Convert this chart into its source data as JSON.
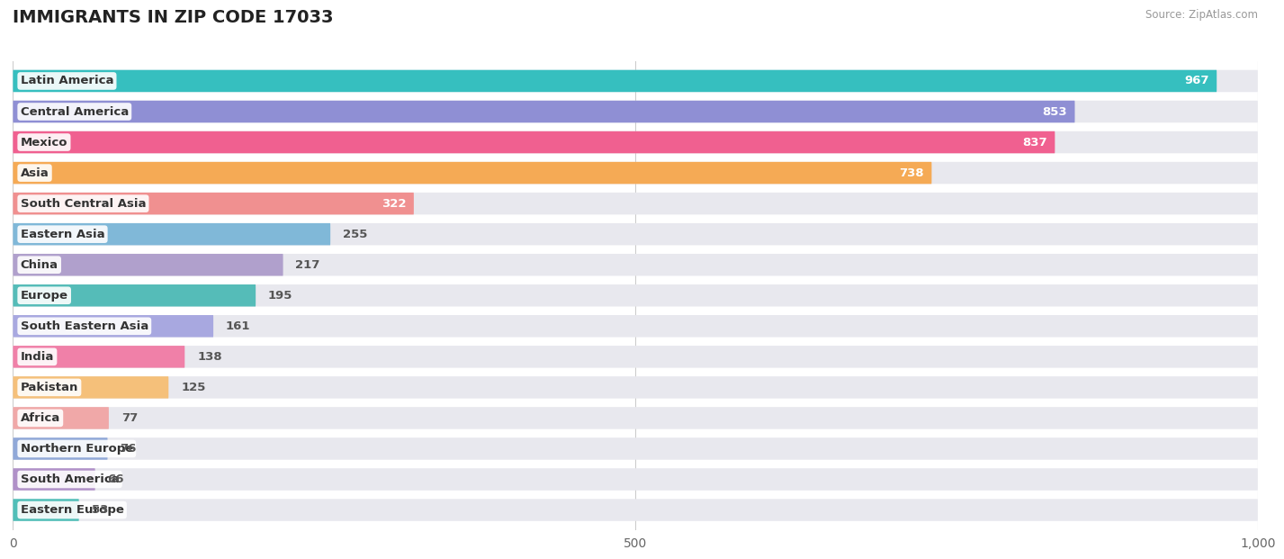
{
  "title": "IMMIGRANTS IN ZIP CODE 17033",
  "source": "Source: ZipAtlas.com",
  "categories": [
    "Latin America",
    "Central America",
    "Mexico",
    "Asia",
    "South Central Asia",
    "Eastern Asia",
    "China",
    "Europe",
    "South Eastern Asia",
    "India",
    "Pakistan",
    "Africa",
    "Northern Europe",
    "South America",
    "Eastern Europe"
  ],
  "values": [
    967,
    853,
    837,
    738,
    322,
    255,
    217,
    195,
    161,
    138,
    125,
    77,
    76,
    66,
    53
  ],
  "bar_colors": [
    "#36bfbf",
    "#8f8fd4",
    "#f06090",
    "#f5aa55",
    "#f09090",
    "#80b8d8",
    "#b0a0cc",
    "#55bcb8",
    "#a8a8e0",
    "#f080a8",
    "#f5c07a",
    "#f0a8a8",
    "#90a8d8",
    "#b090c8",
    "#50bfb8"
  ],
  "bar_bg_color": "#e8e8ee",
  "xlim": [
    0,
    1000
  ],
  "xticks": [
    0,
    500,
    1000
  ],
  "title_fontsize": 14,
  "label_fontsize": 9.5,
  "value_fontsize": 9.5,
  "value_threshold": 300
}
